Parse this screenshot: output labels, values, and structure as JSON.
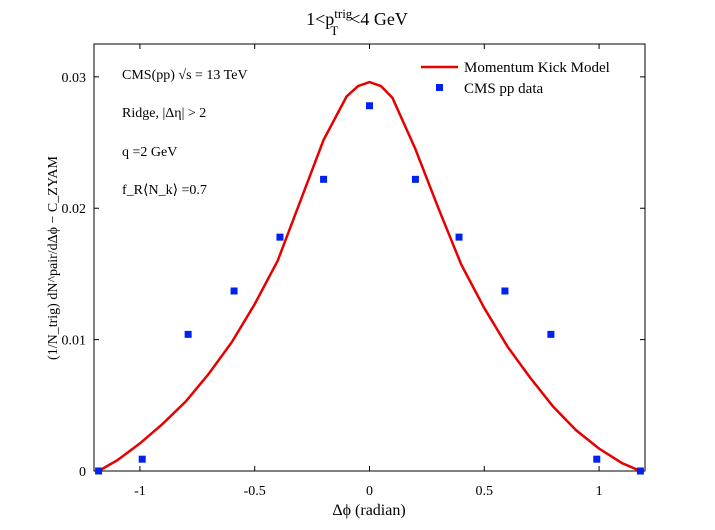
{
  "chart_data": {
    "type": "line+scatter",
    "title": {
      "base": "1<p",
      "sub": "T",
      "sup": "trig",
      "rest": "<4 GeV"
    },
    "xlabel": "Δϕ (radian)",
    "ylabel": "(1/N_trig) dN^pair/dΔϕ − C_ZYAM",
    "xlim": [
      -1.2,
      1.2
    ],
    "ylim": [
      0,
      0.0325
    ],
    "xticks": [
      {
        "value": -1,
        "label": "-1"
      },
      {
        "value": -0.5,
        "label": "-0.5"
      },
      {
        "value": 0,
        "label": "0"
      },
      {
        "value": 0.5,
        "label": "0.5"
      },
      {
        "value": 1,
        "label": "1"
      }
    ],
    "yticks": [
      {
        "value": 0,
        "label": "0"
      },
      {
        "value": 0.01,
        "label": "0.01"
      },
      {
        "value": 0.02,
        "label": "0.02"
      },
      {
        "value": 0.03,
        "label": "0.03"
      }
    ],
    "annotations": [
      "CMS(pp) √s = 13 TeV",
      "Ridge, |Δη| > 2",
      "q =2 GeV",
      "f_R⟨N_k⟩ =0.7"
    ],
    "legend_position": "top-right",
    "series": [
      {
        "name": "Momentum Kick Model",
        "kind": "line",
        "color": "#e60000",
        "x": [
          -1.18,
          -1.1,
          -1.0,
          -0.9,
          -0.8,
          -0.7,
          -0.6,
          -0.5,
          -0.4,
          -0.3,
          -0.2,
          -0.1,
          -0.05,
          0,
          0.05,
          0.1,
          0.2,
          0.3,
          0.4,
          0.5,
          0.6,
          0.7,
          0.8,
          0.9,
          1.0,
          1.1,
          1.18
        ],
        "y": [
          0.0,
          0.0008,
          0.0021,
          0.0036,
          0.0053,
          0.0074,
          0.0098,
          0.0127,
          0.016,
          0.0206,
          0.0252,
          0.0285,
          0.0293,
          0.0296,
          0.0293,
          0.0284,
          0.0245,
          0.02,
          0.0157,
          0.0124,
          0.0095,
          0.0071,
          0.0049,
          0.0031,
          0.0017,
          0.0006,
          0.0
        ]
      },
      {
        "name": "CMS pp data",
        "kind": "scatter",
        "color": "#0022ee",
        "x": [
          -1.18,
          -0.99,
          -0.79,
          -0.59,
          -0.39,
          -0.2,
          0,
          0.2,
          0.39,
          0.59,
          0.79,
          0.99,
          1.18
        ],
        "y": [
          0.0,
          0.0009,
          0.0104,
          0.0137,
          0.0178,
          0.0222,
          0.0278,
          0.0222,
          0.0178,
          0.0137,
          0.0104,
          0.0009,
          0.0
        ]
      }
    ]
  }
}
